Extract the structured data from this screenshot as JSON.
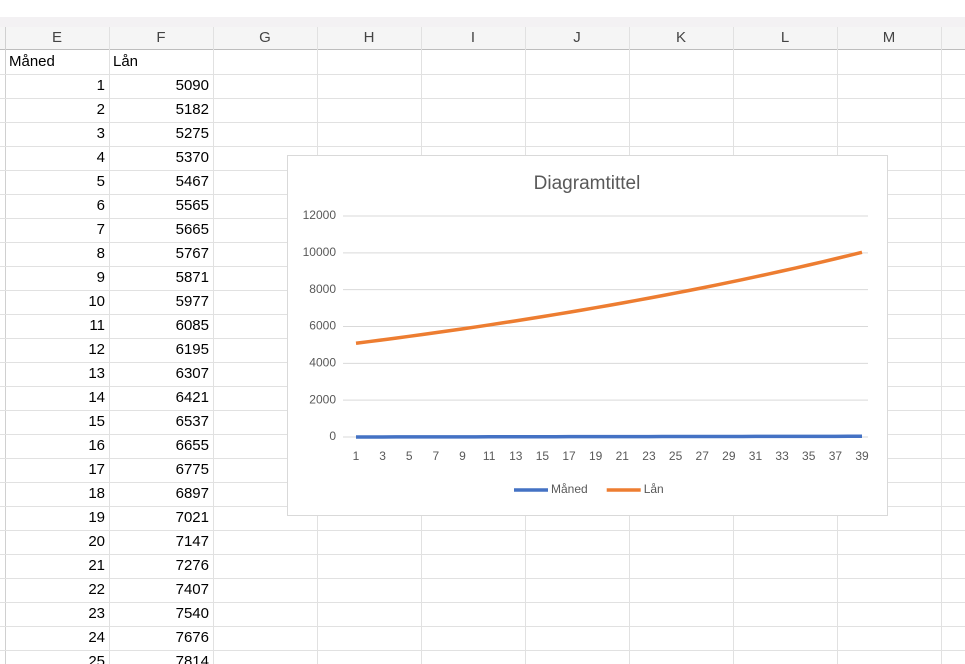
{
  "sheet": {
    "columns": [
      "E",
      "F",
      "G",
      "H",
      "I",
      "J",
      "K",
      "L",
      "M"
    ],
    "header": [
      "Måned",
      "Lån"
    ],
    "rows": [
      [
        1,
        5090
      ],
      [
        2,
        5182
      ],
      [
        3,
        5275
      ],
      [
        4,
        5370
      ],
      [
        5,
        5467
      ],
      [
        6,
        5565
      ],
      [
        7,
        5665
      ],
      [
        8,
        5767
      ],
      [
        9,
        5871
      ],
      [
        10,
        5977
      ],
      [
        11,
        6085
      ],
      [
        12,
        6195
      ],
      [
        13,
        6307
      ],
      [
        14,
        6421
      ],
      [
        15,
        6537
      ],
      [
        16,
        6655
      ],
      [
        17,
        6775
      ],
      [
        18,
        6897
      ],
      [
        19,
        7021
      ],
      [
        20,
        7147
      ],
      [
        21,
        7276
      ],
      [
        22,
        7407
      ],
      [
        23,
        7540
      ],
      [
        24,
        7676
      ],
      [
        25,
        7814
      ]
    ]
  },
  "chart_data": {
    "type": "line",
    "title": "Diagramtittel",
    "categories": [
      1,
      null,
      3,
      null,
      5,
      null,
      7,
      null,
      9,
      null,
      11,
      null,
      13,
      null,
      15,
      null,
      17,
      null,
      19,
      null,
      21,
      null,
      23,
      null,
      25,
      null,
      27,
      null,
      29,
      null,
      31,
      null,
      33,
      null,
      35,
      null,
      37,
      null,
      39
    ],
    "series": [
      {
        "name": "Måned",
        "color": "#4472c4",
        "values": [
          1,
          2,
          3,
          4,
          5,
          6,
          7,
          8,
          9,
          10,
          11,
          12,
          13,
          14,
          15,
          16,
          17,
          18,
          19,
          20,
          21,
          22,
          23,
          24,
          25,
          26,
          27,
          28,
          29,
          30,
          31,
          32,
          33,
          34,
          35,
          36,
          37,
          38,
          39
        ]
      },
      {
        "name": "Lån",
        "color": "#ed7d31",
        "values": [
          5090,
          5182,
          5275,
          5370,
          5467,
          5565,
          5665,
          5767,
          5871,
          5977,
          6085,
          6195,
          6307,
          6421,
          6537,
          6655,
          6775,
          6897,
          7021,
          7147,
          7276,
          7407,
          7540,
          7676,
          7814,
          7955,
          8098,
          8244,
          8392,
          8543,
          8697,
          8854,
          9013,
          9175,
          9340,
          9508,
          9679,
          9853,
          10030
        ]
      }
    ],
    "ylim": [
      0,
      12000
    ],
    "yticks": [
      0,
      2000,
      4000,
      6000,
      8000,
      10000,
      12000
    ],
    "grid": true,
    "legend": "bottom"
  }
}
